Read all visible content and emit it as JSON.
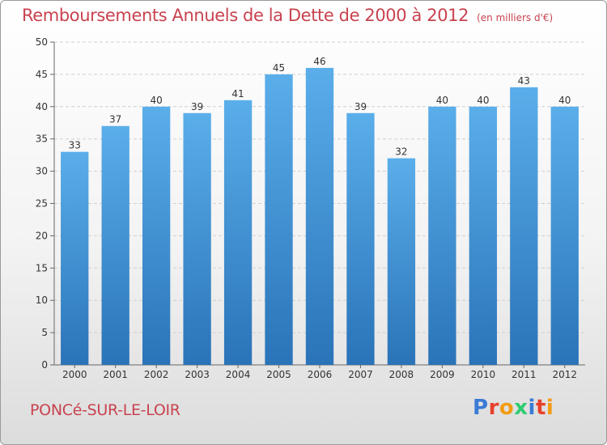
{
  "chart_data": {
    "type": "bar",
    "title": "Remboursements Annuels de la Dette de 2000 à 2012",
    "subtitle": "(en milliers d'€)",
    "categories": [
      "2000",
      "2001",
      "2002",
      "2003",
      "2004",
      "2005",
      "2006",
      "2007",
      "2008",
      "2009",
      "2010",
      "2011",
      "2012"
    ],
    "values": [
      33,
      37,
      40,
      39,
      41,
      45,
      46,
      39,
      32,
      40,
      40,
      43,
      40
    ],
    "ylim": [
      0,
      50
    ],
    "yticks": [
      0,
      5,
      10,
      15,
      20,
      25,
      30,
      35,
      40,
      45,
      50
    ],
    "grid": true,
    "bar_color": "#3d8fd0",
    "title_color": "#c8434f"
  },
  "footer": {
    "city": "PONCé-SUR-LE-LOIR",
    "logo_letters": [
      "P",
      "r",
      "o",
      "x",
      "i",
      "t",
      "i"
    ],
    "logo_colors": [
      "#3a7bd5",
      "#e8412c",
      "#f39c12",
      "#2ecc71",
      "#3a7bd5",
      "#e8412c",
      "#f39c12"
    ]
  }
}
